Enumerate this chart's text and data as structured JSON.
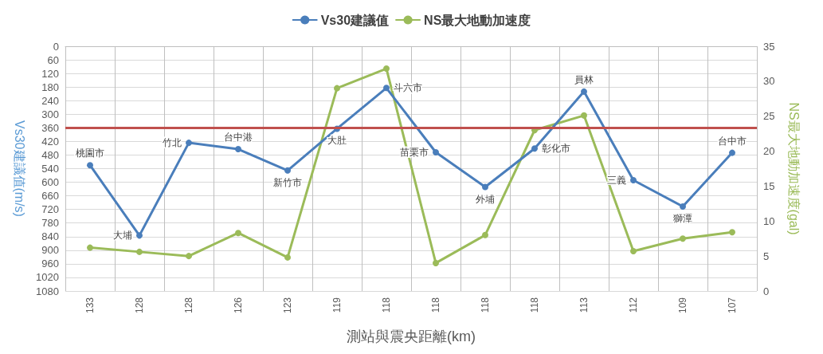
{
  "chart_data": {
    "type": "line",
    "xlabel": "測站與震央距離(km)",
    "ylabel": "Vs30建議值(m/s)",
    "y2label": "NS最大地動加速度(gal)",
    "categories": [
      "133",
      "128",
      "128",
      "126",
      "123",
      "119",
      "118",
      "118",
      "118",
      "118",
      "113",
      "112",
      "109",
      "107"
    ],
    "series": [
      {
        "name": "Vs30建議值",
        "color": "#4a7ebb",
        "values": [
          525,
          835,
          426,
          454,
          548,
          364,
          184,
          468,
          621,
          451,
          200,
          591,
          707,
          470
        ],
        "value_labels": [
          "桃園市",
          "大埔",
          "竹北",
          "台中港",
          "新竹市",
          "大肚",
          "斗六市",
          "苗栗市",
          "外埔",
          "彰化市",
          "員林",
          "三義",
          "獅潭",
          "台中市"
        ]
      },
      {
        "name": "NS最大地動加速度",
        "color": "#9bbb59",
        "axis": "y2",
        "values": [
          6.2,
          5.6,
          5.0,
          8.3,
          4.8,
          29.0,
          31.8,
          4.0,
          8.0,
          23.0,
          25.1,
          5.7,
          7.5,
          8.4
        ]
      }
    ],
    "ylim": [
      1080,
      0
    ],
    "yticks": [
      0,
      60,
      120,
      180,
      240,
      300,
      360,
      420,
      480,
      540,
      600,
      660,
      720,
      780,
      840,
      900,
      960,
      1020,
      1080
    ],
    "y2lim": [
      0,
      35
    ],
    "y2ticks": [
      0,
      5,
      10,
      15,
      20,
      25,
      30,
      35
    ],
    "ref_lines": [
      {
        "axis": "y",
        "value": 360,
        "color": "#c0504d"
      }
    ],
    "grid": true,
    "legend": "top",
    "marker": "circle",
    "line_style": "solid"
  }
}
